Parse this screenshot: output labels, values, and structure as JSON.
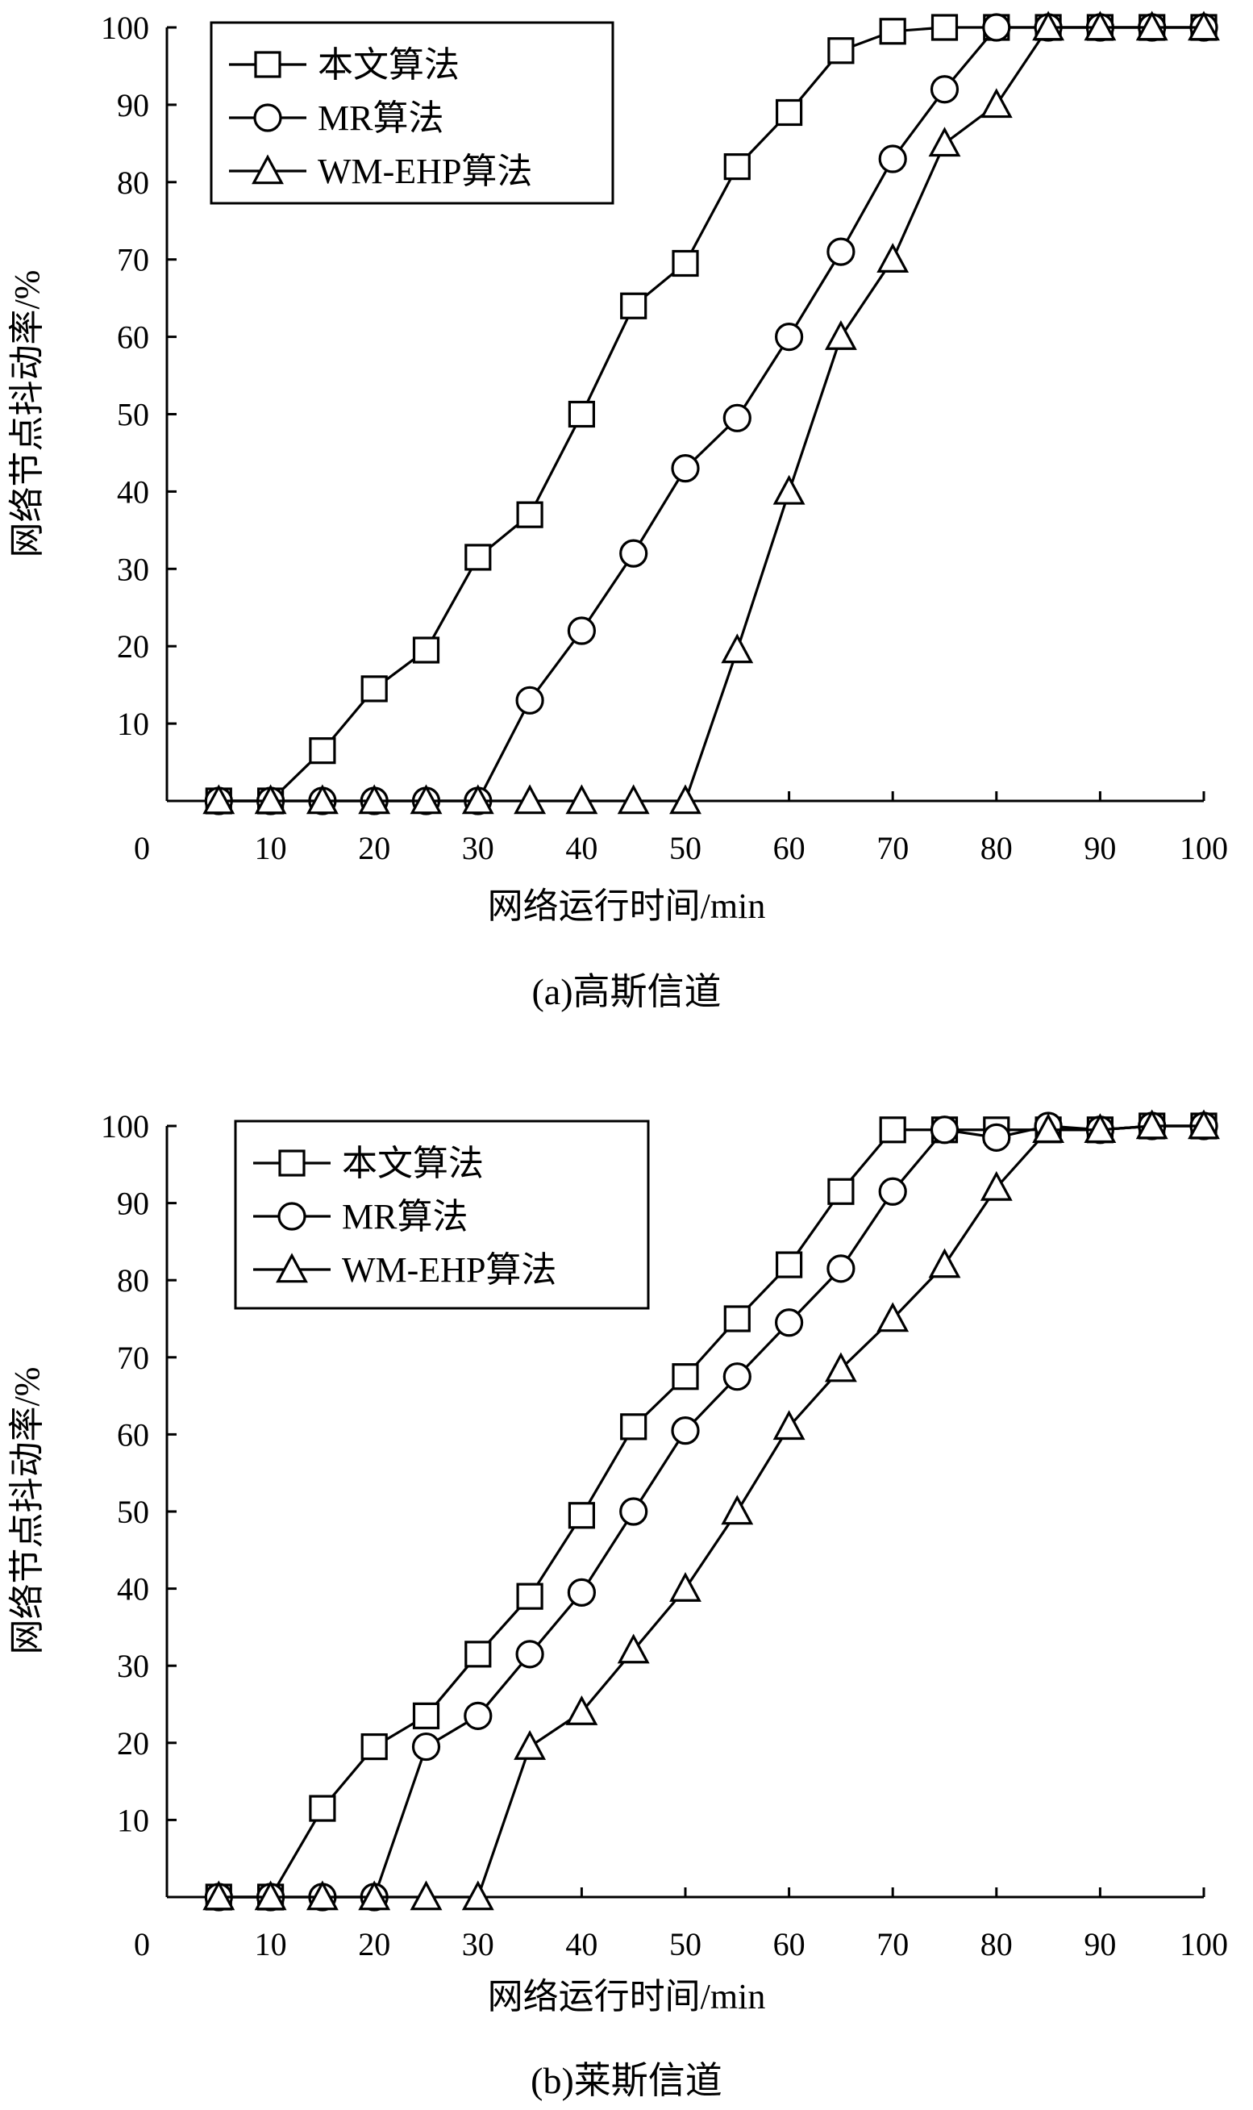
{
  "chart_data": [
    {
      "type": "line",
      "title": "(a)高斯信道",
      "xlabel": "网络运行时间/min",
      "ylabel": "网络节点抖动率/%",
      "xlim": [
        0,
        100
      ],
      "ylim": [
        0,
        100
      ],
      "xticks": [
        0,
        10,
        20,
        30,
        40,
        50,
        60,
        70,
        80,
        90,
        100
      ],
      "yticks": [
        10,
        20,
        30,
        40,
        50,
        60,
        70,
        80,
        90,
        100
      ],
      "grid": false,
      "legend_position": "top-left",
      "x": [
        5,
        10,
        15,
        20,
        25,
        30,
        35,
        40,
        45,
        50,
        55,
        60,
        65,
        70,
        75,
        80,
        85,
        90,
        95,
        100
      ],
      "series": [
        {
          "name": "本文算法",
          "marker": "square",
          "values": [
            0,
            0,
            6.5,
            14.5,
            19.5,
            31.5,
            37,
            50,
            64,
            69.5,
            82,
            89,
            97,
            99.5,
            100,
            100,
            100,
            100,
            100,
            100
          ]
        },
        {
          "name": "MR算法",
          "marker": "circle",
          "values": [
            0,
            0,
            0,
            0,
            0,
            0,
            13,
            22,
            32,
            43,
            49.5,
            60,
            71,
            83,
            92,
            100,
            100,
            100,
            100,
            100
          ]
        },
        {
          "name": "WM-EHP算法",
          "marker": "triangle",
          "values": [
            0,
            0,
            0,
            0,
            0,
            0,
            0,
            0,
            0,
            0,
            19.5,
            40,
            60,
            70,
            85,
            90,
            100,
            100,
            100,
            100
          ]
        }
      ]
    },
    {
      "type": "line",
      "title": "(b)莱斯信道",
      "xlabel": "网络运行时间/min",
      "ylabel": "网络节点抖动率/%",
      "xlim": [
        0,
        100
      ],
      "ylim": [
        0,
        100
      ],
      "xticks": [
        0,
        10,
        20,
        30,
        40,
        50,
        60,
        70,
        80,
        90,
        100
      ],
      "yticks": [
        10,
        20,
        30,
        40,
        50,
        60,
        70,
        80,
        90,
        100
      ],
      "grid": false,
      "legend_position": "top-left",
      "x": [
        5,
        10,
        15,
        20,
        25,
        30,
        35,
        40,
        45,
        50,
        55,
        60,
        65,
        70,
        75,
        80,
        85,
        90,
        95,
        100
      ],
      "series": [
        {
          "name": "本文算法",
          "marker": "square",
          "values": [
            0,
            0,
            11.5,
            19.5,
            23.5,
            31.5,
            39,
            49.5,
            61,
            67.5,
            75,
            82,
            91.5,
            99.5,
            99.5,
            99.5,
            99.5,
            99.5,
            100,
            100
          ]
        },
        {
          "name": "MR算法",
          "marker": "circle",
          "values": [
            0,
            0,
            0,
            0,
            19.5,
            23.5,
            31.5,
            39.5,
            50,
            60.5,
            67.5,
            74.5,
            81.5,
            91.5,
            99.5,
            98.5,
            100,
            99.5,
            100,
            100
          ]
        },
        {
          "name": "WM-EHP算法",
          "marker": "triangle",
          "values": [
            0,
            0,
            0,
            0,
            0,
            0,
            19.5,
            24,
            32,
            40,
            50,
            61,
            68.5,
            75,
            82,
            92,
            99.5,
            99.5,
            100,
            100
          ]
        }
      ]
    }
  ]
}
